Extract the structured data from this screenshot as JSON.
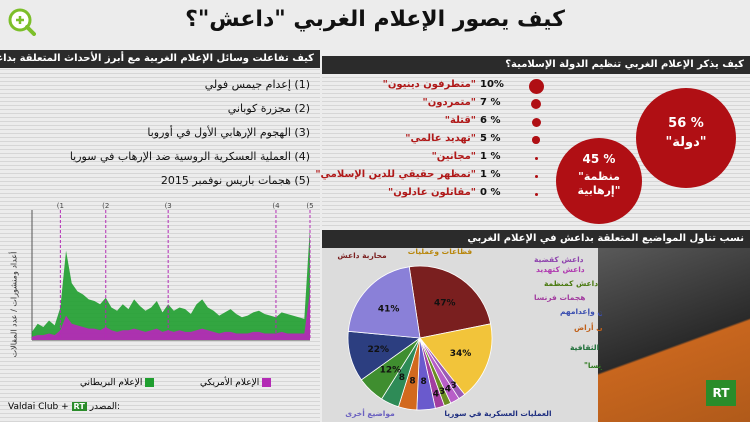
{
  "title": "كيف يصور الإعلام الغربي \"داعش\"؟",
  "left_panel": {
    "header": "كيف تفاعلت وسائل الإعلام الغربية مع أبرز الأحداث المتعلقة بداعش؟",
    "events": [
      "(1) إعدام جيمس فولي",
      "(2) مجزرة كوباني",
      "(3) الهجوم الإرهابي الأول في أوروبا",
      "(4) العملية العسكرية الروسية ضد الإرهاب في سوريا",
      "(5) هجمات باريس نوفمبر 2015"
    ],
    "y_axis_label": "أعداد ومنشورات / عدد المقالات",
    "marker_labels": [
      "(1",
      "(2",
      "(3",
      "(4",
      "(5"
    ],
    "legend": [
      {
        "label": "الإعلام البريطاني",
        "color": "#1f9e2f"
      },
      {
        "label": "الإعلام الأمريكي",
        "color": "#b32bb5"
      }
    ],
    "source_label": "المصدر:",
    "source_text": "Valdai Club +"
  },
  "right_top": {
    "header": "كيف يذكر الإعلام الغربي تنظيم الدولة الإسلامية؟",
    "terms": [
      {
        "pct": "10%",
        "label": "\"متطرفون دينيون\"",
        "size": 10
      },
      {
        "pct": "7 %",
        "label": "\"متمردون\"",
        "size": 7
      },
      {
        "pct": "6 %",
        "label": "\"قتلة\"",
        "size": 6
      },
      {
        "pct": "5 %",
        "label": "\"تهديد عالمي\"",
        "size": 5
      },
      {
        "pct": "1 %",
        "label": "\"مجانين\"",
        "size": 1
      },
      {
        "pct": "1 %",
        "label": "\"تمظهر حقيقي للدين الإسلامي\"",
        "size": 1
      },
      {
        "pct": "0 %",
        "label": "\"مقاتلون عادلون\"",
        "size": 0
      }
    ],
    "bubbles": [
      {
        "pct": "56 %",
        "label": "\"دولة\""
      },
      {
        "pct": "45 %",
        "label": "\"منظمة إرهابية\""
      }
    ]
  },
  "right_bottom": {
    "header": "نسب تناول المواضيع المتعلقة بداعش في الإعلام الغربي"
  },
  "chart_data": [
    {
      "type": "area",
      "title": "كيف تفاعلت وسائل الإعلام الغربية مع أبرز الأحداث المتعلقة بداعش؟",
      "ylabel": "أعداد ومنشورات / عدد المقالات",
      "series": [
        {
          "name": "الإعلام البريطاني",
          "values": [
            5,
            10,
            8,
            12,
            9,
            20,
            55,
            35,
            30,
            28,
            25,
            24,
            22,
            26,
            20,
            18,
            22,
            19,
            25,
            21,
            18,
            20,
            24,
            17,
            22,
            18,
            20,
            19,
            16,
            22,
            25,
            20,
            18,
            15,
            17,
            19,
            16,
            14,
            15,
            17,
            18,
            16,
            15,
            14,
            17,
            16,
            15,
            14,
            13,
            70
          ]
        },
        {
          "name": "الإعلام الأمريكي",
          "values": [
            2,
            3,
            3,
            4,
            3,
            6,
            15,
            10,
            9,
            8,
            7,
            7,
            6,
            8,
            6,
            5,
            6,
            6,
            7,
            6,
            5,
            6,
            7,
            5,
            6,
            5,
            6,
            5,
            5,
            6,
            7,
            6,
            5,
            4,
            5,
            5,
            4,
            4,
            4,
            5,
            5,
            4,
            4,
            4,
            5,
            4,
            4,
            4,
            4,
            30
          ]
        }
      ],
      "events": [
        "(1",
        "(2",
        "(3",
        "(4",
        "(5"
      ]
    },
    {
      "type": "pie",
      "title": "نسب تناول المواضيع المتعلقة بداعش في الإعلام الغربي",
      "categories": [
        "محاربة داعش",
        "فظاعات وعمليات",
        "داعش كقضية",
        "داعش كتهديد",
        "داعش كمنظمة",
        "هجمات فرنسا",
        "خطف رهائن وإعدامهم",
        "استيلاء داعش على أراض",
        "جرائم داعش الثقافية",
        "هجمات أخرى غير \"نوفمبر فرنسا\"",
        "العمليات العسكرية في سوريا",
        "مواضيع أخرى"
      ],
      "values": [
        47,
        34,
        3,
        4,
        3,
        4,
        8,
        8,
        8,
        12,
        22,
        41
      ],
      "value_labels": [
        "47%",
        "34%",
        "3",
        "4",
        "3",
        "4",
        "8",
        "8",
        "8",
        "12%",
        "22%",
        "41%"
      ],
      "colors": [
        "#7a1f1f",
        "#f2c43a",
        "#9b59b6",
        "#b85ec8",
        "#6b8e23",
        "#a33ea0",
        "#6a5acd",
        "#d2691e",
        "#2e8b57",
        "#3f8e2f",
        "#2c3e80",
        "#8a80d8"
      ],
      "label_colors": [
        "#7a1f1f",
        "#b8860b",
        "#8e44ad",
        "#b03ab0",
        "#4a7a10",
        "#a33ea0",
        "#3b4fb0",
        "#c0601a",
        "#1f6f3a",
        "#2f7a20",
        "#1f2f80",
        "#6a60c0"
      ]
    }
  ]
}
